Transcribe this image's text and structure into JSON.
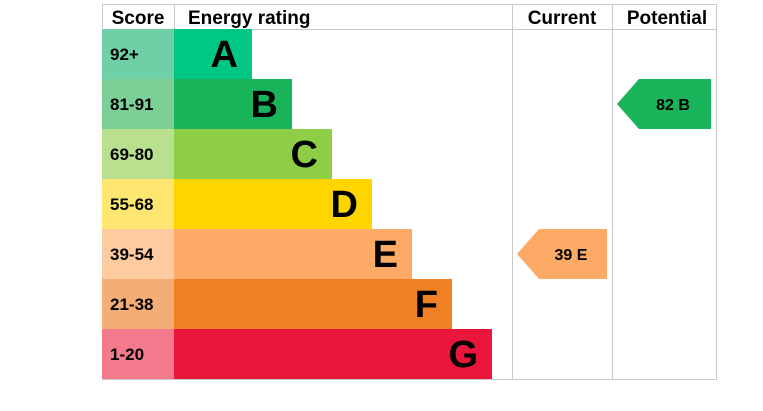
{
  "headers": {
    "score": "Score",
    "energy_rating": "Energy rating",
    "current": "Current",
    "potential": "Potential"
  },
  "chart_data": {
    "type": "bar",
    "bands": [
      {
        "letter": "A",
        "range": "92+",
        "color": "#00c781",
        "score_bg": "#6fcfa6"
      },
      {
        "letter": "B",
        "range": "81-91",
        "color": "#19b459",
        "score_bg": "#7ccf96"
      },
      {
        "letter": "C",
        "range": "69-80",
        "color": "#8dce46",
        "score_bg": "#b9e08e"
      },
      {
        "letter": "D",
        "range": "55-68",
        "color": "#ffd500",
        "score_bg": "#ffe671"
      },
      {
        "letter": "E",
        "range": "39-54",
        "color": "#fcaa65",
        "score_bg": "#fdcb9f"
      },
      {
        "letter": "F",
        "range": "21-38",
        "color": "#ef8023",
        "score_bg": "#f4ad74"
      },
      {
        "letter": "G",
        "range": "1-20",
        "color": "#e9153b",
        "score_bg": "#f27a8c"
      }
    ],
    "current": {
      "value": 39,
      "band": "E",
      "label": "39 E",
      "color": "#fcaa65"
    },
    "potential": {
      "value": 82,
      "band": "B",
      "label": "82 B",
      "color": "#19b459"
    }
  }
}
